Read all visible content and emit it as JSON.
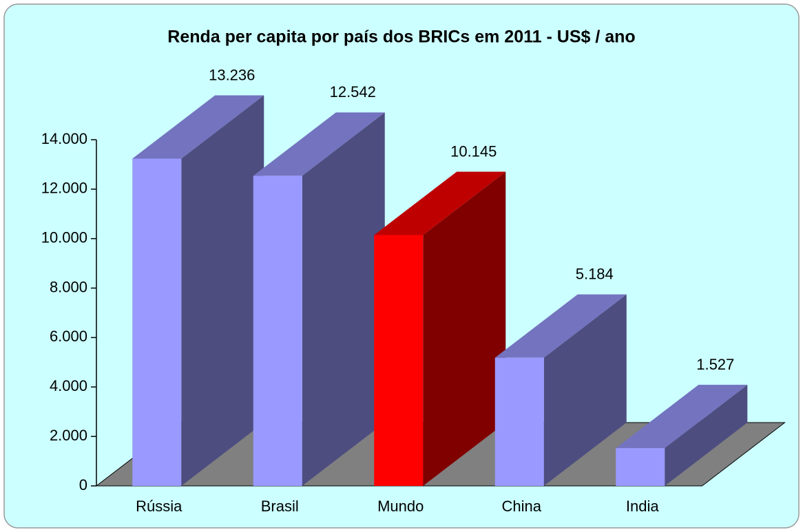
{
  "chart_data": {
    "type": "bar3d",
    "title": "Renda per capita por país dos BRICs em 2011 - US$ / ano",
    "categories": [
      "Rússia",
      "Brasil",
      "Mundo",
      "China",
      "India"
    ],
    "values": [
      13236,
      12542,
      10145,
      5184,
      1527
    ],
    "value_labels": [
      "13.236",
      "12.542",
      "10.145",
      "5.184",
      "1.527"
    ],
    "colors": [
      "#9999ff",
      "#9999ff",
      "#ff0000",
      "#9999ff",
      "#9999ff"
    ],
    "ylim": [
      0,
      14000
    ],
    "yticks": [
      0,
      {
        "value": 2000,
        "label": "2.000"
      },
      {
        "value": 4000,
        "label": "4.000"
      },
      {
        "value": 6000,
        "label": "6.000"
      },
      {
        "value": 8000,
        "label": "8.000"
      },
      {
        "value": 10000,
        "label": "10.000"
      },
      {
        "value": 12000,
        "label": "12.000"
      },
      {
        "value": 14000,
        "label": "14.000"
      }
    ]
  }
}
